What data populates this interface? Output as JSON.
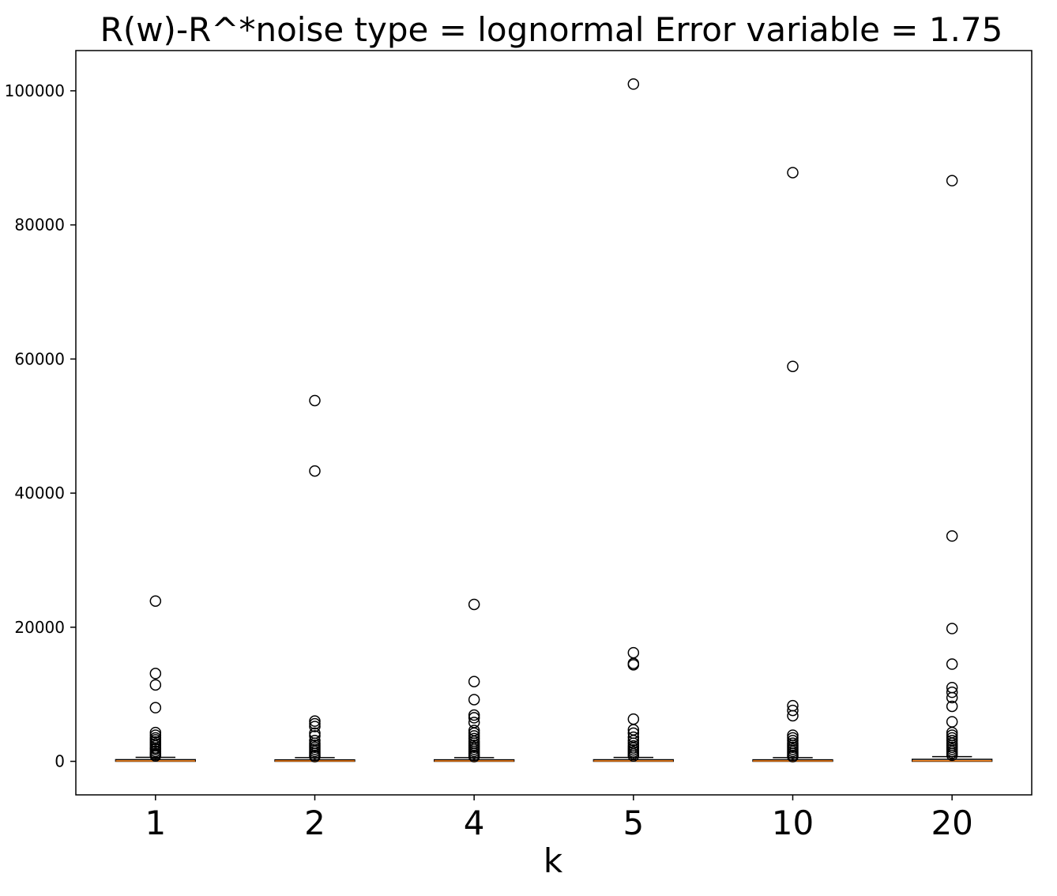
{
  "chart_data": {
    "type": "boxplot",
    "title": "R(w)-R^*noise type = lognormal Error variable = 1.75",
    "xlabel": "k",
    "ylabel": "",
    "categories": [
      "1",
      "2",
      "4",
      "5",
      "10",
      "20"
    ],
    "ylim": [
      -5000,
      106000
    ],
    "yticks": [
      0,
      20000,
      40000,
      60000,
      80000,
      100000
    ],
    "ytick_labels": [
      "0",
      "20000",
      "40000",
      "60000",
      "80000",
      "100000"
    ],
    "grid": false,
    "colors": {
      "median": "#ff7f0e",
      "box": "#000000",
      "flier": "#000000",
      "axes": "#000000"
    },
    "boxes": [
      {
        "category": "1",
        "whisker_low": 0,
        "q1": 10,
        "median": 60,
        "q3": 250,
        "whisker_high": 600,
        "fliers": [
          23900,
          13100,
          11400,
          8000,
          4300,
          3900,
          3500,
          3200,
          2900,
          2600,
          2300,
          2000,
          1800,
          1500,
          1200,
          1000,
          800
        ]
      },
      {
        "category": "2",
        "whisker_low": 0,
        "q1": 10,
        "median": 60,
        "q3": 220,
        "whisker_high": 550,
        "fliers": [
          53800,
          43300,
          6000,
          5600,
          5200,
          4200,
          3800,
          3100,
          2700,
          2400,
          2100,
          1800,
          1500,
          1200,
          900,
          700
        ]
      },
      {
        "category": "4",
        "whisker_low": 0,
        "q1": 10,
        "median": 60,
        "q3": 230,
        "whisker_high": 560,
        "fliers": [
          23400,
          11900,
          9200,
          6900,
          6500,
          5800,
          4600,
          4200,
          3800,
          3400,
          3000,
          2700,
          2400,
          2100,
          1800,
          1500,
          1200,
          900,
          700
        ]
      },
      {
        "category": "5",
        "whisker_low": 0,
        "q1": 10,
        "median": 60,
        "q3": 240,
        "whisker_high": 580,
        "fliers": [
          101000,
          16200,
          14600,
          14400,
          6300,
          4700,
          4200,
          3600,
          3100,
          2700,
          2300,
          2000,
          1700,
          1400,
          1100,
          800
        ]
      },
      {
        "category": "10",
        "whisker_low": 0,
        "q1": 10,
        "median": 60,
        "q3": 230,
        "whisker_high": 560,
        "fliers": [
          87800,
          58900,
          8300,
          7600,
          6800,
          3900,
          3500,
          3100,
          2700,
          2400,
          2100,
          1800,
          1500,
          1200,
          900,
          700
        ]
      },
      {
        "category": "20",
        "whisker_low": 0,
        "q1": 10,
        "median": 80,
        "q3": 300,
        "whisker_high": 700,
        "fliers": [
          86600,
          33600,
          19800,
          14500,
          11000,
          10300,
          9500,
          8200,
          5900,
          4300,
          3900,
          3500,
          3100,
          2700,
          2400,
          2100,
          1800,
          1500,
          1200,
          900
        ]
      }
    ]
  }
}
